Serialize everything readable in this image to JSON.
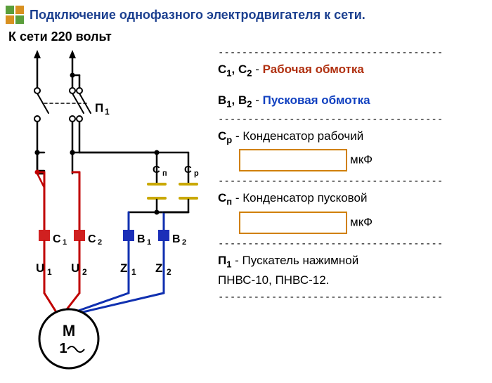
{
  "colors": {
    "green": "#5a9e3b",
    "orange": "#d89020",
    "title_blue": "#1b3f8f",
    "wire_black": "#000000",
    "wire_red": "#c00000",
    "wire_blue": "#1030b0",
    "cap_yellow": "#c9a800",
    "term_red": "#d02020",
    "term_blue": "#1b2fb8",
    "text_black": "#000000",
    "box_orange": "#d08000",
    "red_text": "#b03010",
    "blue_text": "#1040c0"
  },
  "header": {
    "title": "Подключение однофазного электродвигателя к сети."
  },
  "subtitle": "К сети 220 вольт",
  "diagram": {
    "switch_label": "П",
    "switch_label_sub": "1",
    "caps": [
      {
        "label": "С",
        "sub": "п"
      },
      {
        "label": "С",
        "sub": "р"
      }
    ],
    "terminals": [
      {
        "label": "C",
        "sub": "1",
        "color_key": "term_red",
        "wire": "wire_red"
      },
      {
        "label": "C",
        "sub": "2",
        "color_key": "term_red",
        "wire": "wire_red"
      },
      {
        "label": "B",
        "sub": "1",
        "color_key": "term_blue",
        "wire": "wire_blue"
      },
      {
        "label": "B",
        "sub": "2",
        "color_key": "term_blue",
        "wire": "wire_blue"
      }
    ],
    "bottom_labels": [
      {
        "label": "U",
        "sub": "1"
      },
      {
        "label": "U",
        "sub": "2"
      },
      {
        "label": "Z",
        "sub": "1"
      },
      {
        "label": "Z",
        "sub": "2"
      }
    ],
    "motor": {
      "line1": "M",
      "line2": "1",
      "tilde": "~"
    }
  },
  "legend": {
    "dashes": "--------------------------------------",
    "rows": [
      {
        "prefix": "С",
        "s1": "1",
        "mid": ", С",
        "s2": "2",
        "dash": " - ",
        "colored": "Рабочая обмотка",
        "color_key": "red_text"
      },
      {
        "prefix": "В",
        "s1": "1",
        "mid": ", В",
        "s2": "2",
        "dash": " - ",
        "colored": "Пусковая обмотка",
        "color_key": "blue_text"
      }
    ],
    "cap_rows": [
      {
        "prefix": "С",
        "sub": "р",
        "text": " - Конденсатор рабочий",
        "unit": "мкФ"
      },
      {
        "prefix": "С",
        "sub": "п",
        "text": " - Конденсатор пусковой",
        "unit": "мкФ"
      }
    ],
    "starter": {
      "prefix": "П",
      "sub": "1",
      "text": " - Пускатель нажимной",
      "models": "ПНВС-10, ПНВС-12."
    }
  }
}
